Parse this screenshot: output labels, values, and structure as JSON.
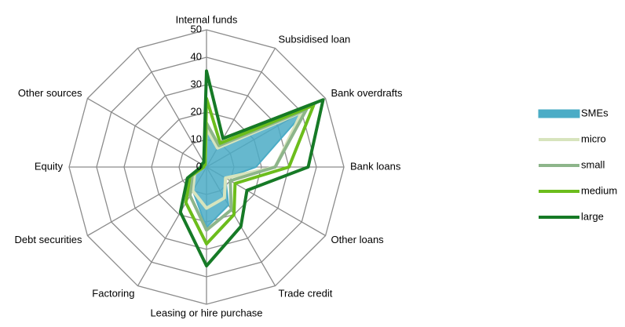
{
  "chart_data": {
    "type": "radar",
    "categories": [
      "Internal funds",
      "Subsidised loan",
      "Bank overdrafts",
      "Bank loans",
      "Other loans",
      "Trade credit",
      "Leasing or hire purchase",
      "Factoring",
      "Debt securities",
      "Equity",
      "Other sources",
      null
    ],
    "ylim": [
      0,
      50
    ],
    "yticks": [
      0,
      10,
      20,
      30,
      40,
      50
    ],
    "grid": true,
    "legend": "right",
    "series": [
      {
        "name": "SMEs",
        "color": "#4bacc6",
        "area": true,
        "values": [
          16,
          8,
          42,
          18,
          8,
          16,
          22,
          10,
          5,
          1,
          1,
          1
        ]
      },
      {
        "name": "micro",
        "color": "#d7e4bd",
        "values": [
          14,
          8,
          40,
          25,
          8,
          13,
          15,
          10,
          5,
          1,
          1,
          1
        ]
      },
      {
        "name": "small",
        "color": "#8db58a",
        "values": [
          16,
          9,
          42,
          25,
          10,
          18,
          23,
          12,
          6,
          1,
          1,
          1
        ]
      },
      {
        "name": "medium",
        "color": "#6cbd1c",
        "values": [
          25,
          10,
          45,
          30,
          12,
          20,
          28,
          15,
          7,
          1,
          1,
          1
        ]
      },
      {
        "name": "large",
        "color": "#167a26",
        "values": [
          35,
          12,
          49,
          37,
          17,
          25,
          36,
          19,
          8,
          2,
          2,
          2
        ]
      }
    ]
  }
}
